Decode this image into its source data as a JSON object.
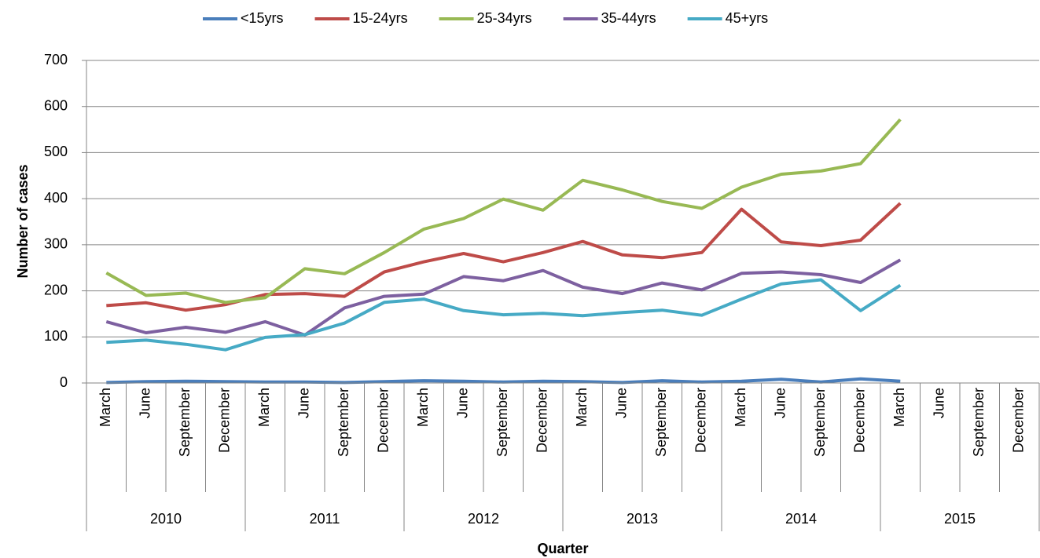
{
  "chart_data": {
    "type": "line",
    "x_label": "Quarter",
    "y_label": "Number of cases",
    "categories": [
      "March",
      "June",
      "September",
      "December",
      "March",
      "June",
      "September",
      "December",
      "March",
      "June",
      "September",
      "December",
      "March",
      "June",
      "September",
      "December",
      "March",
      "June",
      "September",
      "December",
      "March",
      "June",
      "September",
      "December"
    ],
    "years": [
      "2010",
      "2011",
      "2012",
      "2013",
      "2014",
      "2015"
    ],
    "series": [
      {
        "name": "<15yrs",
        "color": "#4a7ebb",
        "values": [
          1,
          3,
          4,
          3,
          2,
          2,
          1,
          3,
          5,
          4,
          2,
          4,
          3,
          1,
          5,
          2,
          4,
          8,
          2,
          9,
          4,
          null,
          null,
          null
        ]
      },
      {
        "name": "15-24yrs",
        "color": "#be4b48",
        "values": [
          168,
          174,
          158,
          170,
          192,
          194,
          188,
          241,
          263,
          281,
          263,
          283,
          307,
          278,
          272,
          283,
          377,
          306,
          298,
          310,
          390,
          null,
          null,
          null
        ]
      },
      {
        "name": "25-34yrs",
        "color": "#98b954",
        "values": [
          239,
          190,
          195,
          175,
          185,
          248,
          237,
          283,
          334,
          357,
          399,
          375,
          440,
          419,
          394,
          379,
          425,
          453,
          460,
          476,
          572,
          null,
          null,
          null
        ]
      },
      {
        "name": "35-44yrs",
        "color": "#7d60a0",
        "values": [
          133,
          109,
          121,
          110,
          133,
          104,
          163,
          188,
          193,
          231,
          222,
          244,
          208,
          194,
          217,
          202,
          238,
          241,
          235,
          218,
          267,
          null,
          null,
          null
        ]
      },
      {
        "name": "45+yrs",
        "color": "#46aac5",
        "values": [
          88,
          93,
          84,
          72,
          99,
          105,
          130,
          175,
          182,
          157,
          148,
          151,
          146,
          153,
          158,
          147,
          182,
          215,
          224,
          157,
          212,
          null,
          null,
          null
        ]
      }
    ],
    "ylim": [
      0,
      700
    ],
    "yticks": [
      0,
      100,
      200,
      300,
      400,
      500,
      600,
      700
    ],
    "grid": true,
    "legend": "top"
  }
}
